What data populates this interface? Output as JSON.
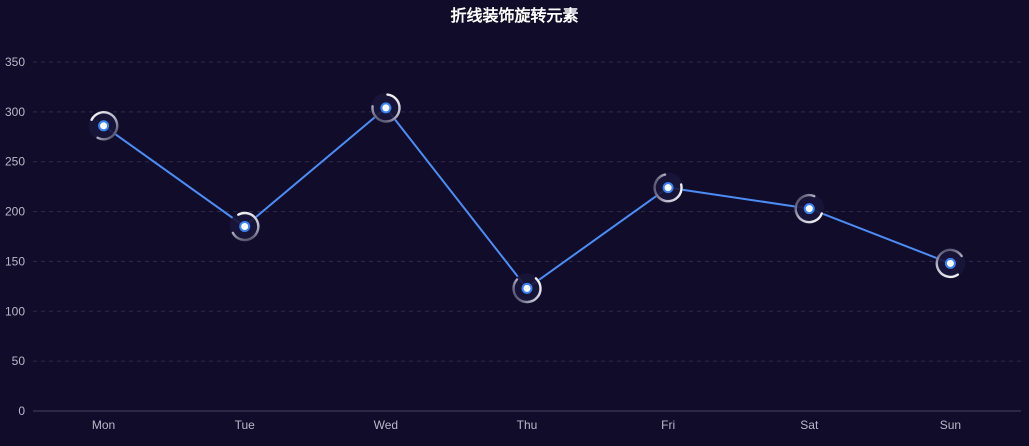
{
  "chart_data": {
    "type": "line",
    "title": "折线装饰旋转元素",
    "categories": [
      "Mon",
      "Tue",
      "Wed",
      "Thu",
      "Fri",
      "Sat",
      "Sun"
    ],
    "values": [
      286,
      185,
      304,
      123,
      224,
      203,
      148
    ],
    "ylim": [
      0,
      350
    ],
    "yticks": [
      0,
      50,
      100,
      150,
      200,
      250,
      300,
      350
    ],
    "grid": true,
    "colors": {
      "background": "#110c2a",
      "line": "#4c8cf5",
      "point_fill": "#ffffff",
      "point_stroke": "#3b82f6",
      "grid": "#2d2a4a",
      "axis": "#4a4566",
      "tick_text": "#b9b7c9",
      "title": "#ffffff"
    }
  }
}
